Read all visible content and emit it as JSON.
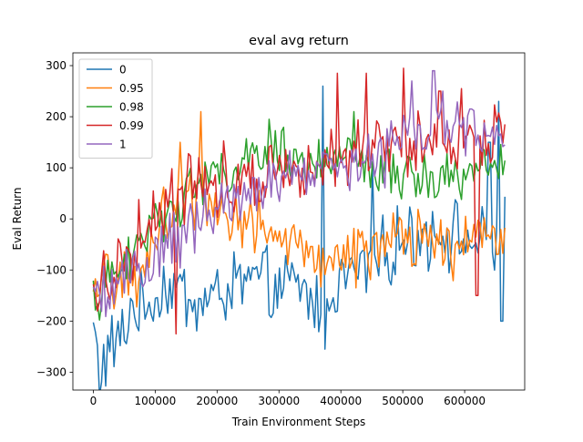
{
  "chart_data": {
    "type": "line",
    "title": "eval avg return",
    "xlabel": "Train Environment Steps",
    "ylabel": "Eval Return",
    "xlim": [
      -33000,
      697000
    ],
    "ylim": [
      -335,
      325
    ],
    "xticks": [
      0,
      100000,
      200000,
      300000,
      400000,
      500000,
      600000
    ],
    "yticks": [
      -300,
      -200,
      -100,
      0,
      100,
      200,
      300
    ],
    "x_start": 0,
    "x_end": 665000,
    "points_per_series": 200,
    "grid": false,
    "legend_position": "top-left",
    "series": [
      {
        "name": "0",
        "color": "#1f77b4",
        "anchors": [
          [
            0,
            -210
          ],
          [
            10000,
            -300
          ],
          [
            30000,
            -250
          ],
          [
            50000,
            -230
          ],
          [
            60000,
            -170
          ],
          [
            80000,
            -180
          ],
          [
            100000,
            -150
          ],
          [
            120000,
            -130
          ],
          [
            140000,
            -140
          ],
          [
            170000,
            -170
          ],
          [
            200000,
            -150
          ],
          [
            230000,
            -130
          ],
          [
            260000,
            -120
          ],
          [
            300000,
            -140
          ],
          [
            330000,
            -130
          ],
          [
            360000,
            -170
          ],
          [
            380000,
            -140
          ],
          [
            400000,
            -120
          ],
          [
            430000,
            -100
          ],
          [
            460000,
            -80
          ],
          [
            480000,
            -60
          ],
          [
            500000,
            -40
          ],
          [
            530000,
            -30
          ],
          [
            560000,
            -20
          ],
          [
            600000,
            -40
          ],
          [
            630000,
            -50
          ],
          [
            650000,
            -60
          ],
          [
            665000,
            -20
          ]
        ],
        "amplitude": 55,
        "spikes": [
          [
            370000,
            260
          ],
          [
            375000,
            -255
          ],
          [
            450000,
            100
          ],
          [
            640000,
            150
          ],
          [
            655000,
            230
          ],
          [
            660000,
            -200
          ]
        ]
      },
      {
        "name": "0.95",
        "color": "#ff7f0e",
        "anchors": [
          [
            0,
            -170
          ],
          [
            20000,
            -120
          ],
          [
            50000,
            -100
          ],
          [
            70000,
            -150
          ],
          [
            100000,
            -20
          ],
          [
            130000,
            30
          ],
          [
            160000,
            40
          ],
          [
            200000,
            30
          ],
          [
            240000,
            0
          ],
          [
            280000,
            -20
          ],
          [
            320000,
            -60
          ],
          [
            360000,
            -80
          ],
          [
            400000,
            -70
          ],
          [
            440000,
            -60
          ],
          [
            480000,
            -50
          ],
          [
            520000,
            -40
          ],
          [
            560000,
            -50
          ],
          [
            600000,
            -50
          ],
          [
            640000,
            -30
          ],
          [
            665000,
            -30
          ]
        ],
        "amplitude": 50,
        "spikes": [
          [
            140000,
            150
          ],
          [
            175000,
            210
          ]
        ]
      },
      {
        "name": "0.98",
        "color": "#2ca02c",
        "anchors": [
          [
            0,
            -160
          ],
          [
            30000,
            -120
          ],
          [
            60000,
            -80
          ],
          [
            90000,
            -20
          ],
          [
            120000,
            20
          ],
          [
            160000,
            60
          ],
          [
            200000,
            90
          ],
          [
            240000,
            100
          ],
          [
            270000,
            120
          ],
          [
            300000,
            140
          ],
          [
            330000,
            110
          ],
          [
            360000,
            110
          ],
          [
            400000,
            110
          ],
          [
            440000,
            100
          ],
          [
            480000,
            90
          ],
          [
            520000,
            80
          ],
          [
            560000,
            80
          ],
          [
            600000,
            90
          ],
          [
            640000,
            110
          ],
          [
            665000,
            100
          ]
        ],
        "amplitude": 40,
        "spikes": [
          [
            285000,
            195
          ],
          [
            420000,
            210
          ]
        ]
      },
      {
        "name": "0.99",
        "color": "#d62728",
        "anchors": [
          [
            0,
            -150
          ],
          [
            30000,
            -100
          ],
          [
            60000,
            -60
          ],
          [
            90000,
            0
          ],
          [
            120000,
            30
          ],
          [
            150000,
            60
          ],
          [
            180000,
            70
          ],
          [
            220000,
            80
          ],
          [
            260000,
            90
          ],
          [
            300000,
            100
          ],
          [
            340000,
            120
          ],
          [
            380000,
            120
          ],
          [
            420000,
            130
          ],
          [
            460000,
            140
          ],
          [
            500000,
            130
          ],
          [
            540000,
            150
          ],
          [
            580000,
            150
          ],
          [
            620000,
            150
          ],
          [
            650000,
            160
          ],
          [
            665000,
            215
          ]
        ],
        "amplitude": 55,
        "spikes": [
          [
            135000,
            -225
          ],
          [
            395000,
            285
          ],
          [
            440000,
            285
          ],
          [
            500000,
            295
          ],
          [
            560000,
            250
          ],
          [
            595000,
            255
          ],
          [
            620000,
            -150
          ]
        ]
      },
      {
        "name": "1",
        "color": "#9467bd",
        "anchors": [
          [
            0,
            -170
          ],
          [
            30000,
            -130
          ],
          [
            60000,
            -110
          ],
          [
            90000,
            -90
          ],
          [
            120000,
            -50
          ],
          [
            160000,
            -20
          ],
          [
            200000,
            20
          ],
          [
            240000,
            50
          ],
          [
            280000,
            80
          ],
          [
            320000,
            80
          ],
          [
            360000,
            90
          ],
          [
            400000,
            100
          ],
          [
            440000,
            110
          ],
          [
            480000,
            130
          ],
          [
            520000,
            170
          ],
          [
            560000,
            190
          ],
          [
            600000,
            180
          ],
          [
            640000,
            150
          ],
          [
            665000,
            120
          ]
        ],
        "amplitude": 45,
        "spikes": [
          [
            515000,
            270
          ],
          [
            550000,
            290
          ],
          [
            610000,
            215
          ]
        ]
      }
    ]
  }
}
